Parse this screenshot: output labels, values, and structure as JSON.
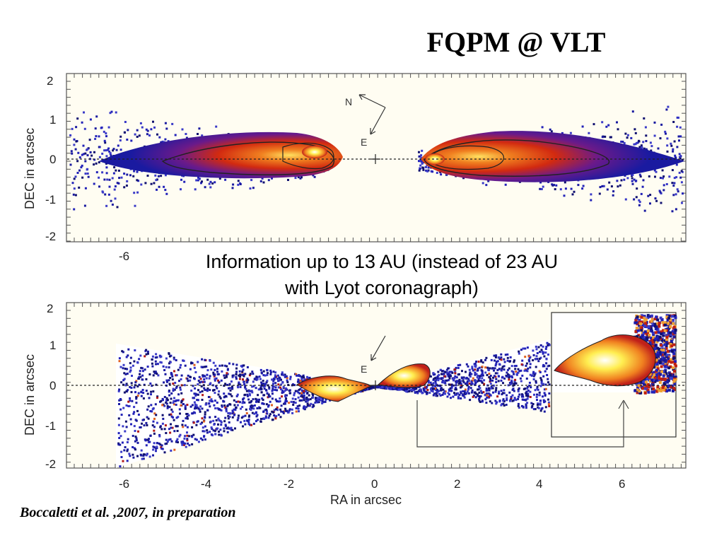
{
  "slide": {
    "title": "FQPM @ VLT",
    "caption_line1": "Information up to 13 AU (instead of 23 AU",
    "caption_line2": "with Lyot coronagraph)",
    "citation": "Boccaletti et al. ,2007, in preparation"
  },
  "compass": {
    "north": "N",
    "east": "E"
  },
  "colors": {
    "disk_outer": "#1a1aa0",
    "disk_mid": "#6a1a8a",
    "disk_inner": "#d22a10",
    "disk_core": "#f08020",
    "disk_peak": "#ffee50",
    "background": "#fffdf2"
  },
  "chart_data": [
    {
      "type": "heatmap",
      "panel": "top",
      "xlabel": "",
      "ylabel": "DEC in arcsec",
      "xlim": [
        -7.5,
        7.5
      ],
      "ylim": [
        -2.2,
        2.0
      ],
      "xticks": [
        -6
      ],
      "yticks": [
        2,
        1,
        0,
        -1,
        -2
      ],
      "image": "edge-on disk, FQPM image, symmetric about RA 0, masked center"
    },
    {
      "type": "heatmap",
      "panel": "bottom",
      "xlabel": "RA in arcsec",
      "ylabel": "DEC in arcsec",
      "xlim": [
        -7.5,
        7.5
      ],
      "ylim": [
        -2.2,
        2.0
      ],
      "xticks": [
        -6,
        -4,
        -2,
        0,
        2,
        4,
        6
      ],
      "yticks": [
        2,
        1,
        0,
        -1,
        -2
      ],
      "image": "processed disk image with zoomed inset",
      "inset_xrange": [
        1.0,
        6.0
      ]
    }
  ]
}
